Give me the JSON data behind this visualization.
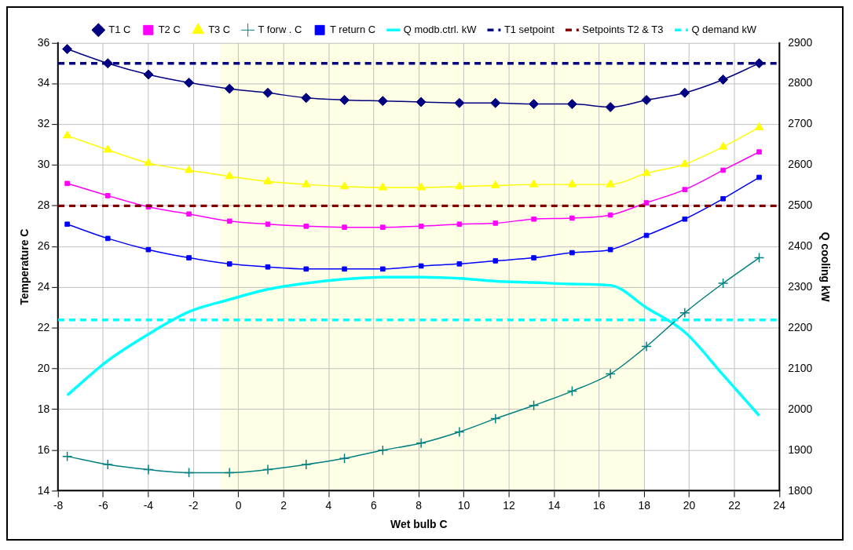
{
  "chart_data": {
    "type": "line",
    "xlabel": "Wet bulb C",
    "ylabel": "Temperature C",
    "y2label": "Q cooling kW",
    "x": [
      -7.6,
      -5.8,
      -4.0,
      -2.2,
      -0.4,
      1.3,
      3.0,
      4.7,
      6.4,
      8.1,
      9.8,
      11.4,
      13.1,
      14.8,
      16.5,
      18.1,
      19.8,
      21.5,
      23.1
    ],
    "series": [
      {
        "name": "T1 C",
        "color": "#000080",
        "marker": "diamond",
        "values": [
          35.7,
          35.0,
          34.45,
          34.05,
          33.75,
          33.55,
          33.3,
          33.2,
          33.15,
          33.1,
          33.05,
          33.05,
          33.0,
          33.0,
          32.85,
          33.2,
          33.55,
          34.2,
          35.0
        ]
      },
      {
        "name": "T2 C",
        "color": "#ff00ff",
        "marker": "square",
        "values": [
          29.1,
          28.5,
          27.95,
          27.6,
          27.25,
          27.1,
          27.0,
          26.95,
          26.95,
          27.0,
          27.1,
          27.15,
          27.35,
          27.4,
          27.55,
          28.15,
          28.8,
          29.75,
          30.65
        ]
      },
      {
        "name": "T3 C",
        "color": "#ffff00",
        "marker": "triangle",
        "values": [
          31.45,
          30.75,
          30.1,
          29.75,
          29.45,
          29.2,
          29.05,
          28.95,
          28.9,
          28.9,
          28.95,
          29.0,
          29.05,
          29.05,
          29.05,
          29.6,
          30.05,
          30.9,
          31.85
        ]
      },
      {
        "name": "T forw . C",
        "color": "#008080",
        "marker": "cross",
        "values": [
          15.7,
          15.3,
          15.05,
          14.9,
          14.9,
          15.05,
          15.3,
          15.6,
          16.0,
          16.35,
          16.9,
          17.55,
          18.2,
          18.9,
          19.75,
          21.1,
          22.75,
          24.2,
          25.45
        ]
      },
      {
        "name": "T return C",
        "color": "#0000ff",
        "marker": "square",
        "values": [
          27.1,
          26.4,
          25.85,
          25.45,
          25.15,
          25.0,
          24.9,
          24.9,
          24.9,
          25.05,
          25.15,
          25.3,
          25.45,
          25.7,
          25.85,
          26.55,
          27.35,
          28.35,
          29.4
        ]
      },
      {
        "name": "Q modb.ctrl. kW",
        "color": "#00ffff",
        "marker": "none",
        "axis": "y2",
        "values": [
          2035,
          2120,
          2185,
          2240,
          2270,
          2295,
          2310,
          2320,
          2325,
          2325,
          2322,
          2315,
          2312,
          2308,
          2305,
          2250,
          2190,
          2085,
          1985
        ]
      }
    ],
    "ref_lines": [
      {
        "axis": "y",
        "value": 35,
        "label": "T1 setpoint",
        "color": "#000080",
        "line_style": "dashed"
      },
      {
        "axis": "y",
        "value": 28,
        "label": "Setpoints T2 & T3",
        "color": "#800000",
        "line_style": "dashed"
      },
      {
        "axis": "y2",
        "value": 2220,
        "label": "Q demand kW",
        "color": "#00ffff",
        "line_style": "dashed"
      }
    ],
    "xlim": [
      -8,
      24
    ],
    "xticks": [
      -8,
      -6,
      -4,
      -2,
      0,
      2,
      4,
      6,
      8,
      10,
      12,
      14,
      16,
      18,
      20,
      22,
      24
    ],
    "ylim": [
      14,
      36
    ],
    "yticks": [
      14,
      16,
      18,
      20,
      22,
      24,
      26,
      28,
      30,
      32,
      34,
      36
    ],
    "y2lim": [
      1800,
      2900
    ],
    "y2ticks": [
      1800,
      1900,
      2000,
      2100,
      2200,
      2300,
      2400,
      2500,
      2600,
      2700,
      2800,
      2900
    ],
    "bands": [
      {
        "axis": "x",
        "from": -0.8,
        "to": 18,
        "color": "#ffffe6"
      }
    ],
    "grid": true,
    "legend": "top"
  }
}
